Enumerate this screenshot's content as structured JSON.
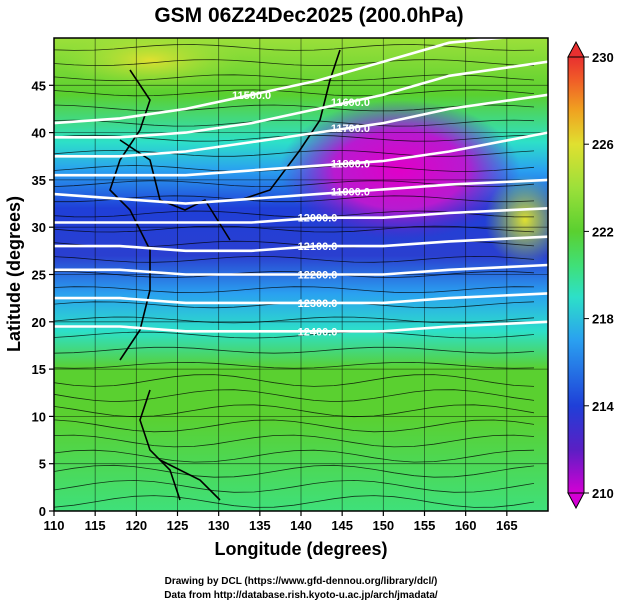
{
  "chart_data": {
    "type": "heatmap",
    "title": "GSM 06Z24Dec2025 (200.0hPa)",
    "xlabel": "Longitude (degrees)",
    "ylabel": "Latitude  (degrees)",
    "xlim": [
      110,
      170
    ],
    "ylim": [
      0,
      50
    ],
    "xticks": [
      "110",
      "115",
      "120",
      "125",
      "130",
      "135",
      "140",
      "145",
      "150",
      "155",
      "160",
      "165"
    ],
    "yticks": [
      "0",
      "5",
      "10",
      "15",
      "20",
      "25",
      "30",
      "35",
      "40",
      "45"
    ],
    "grid": true,
    "colorbar": {
      "min": 210,
      "max": 230,
      "ticks": [
        "230",
        "226",
        "222",
        "218",
        "214",
        "210"
      ],
      "colors": [
        "#d400d4",
        "#5a1fc4",
        "#1f3fd8",
        "#2aa0f0",
        "#2de0c8",
        "#3fe07a",
        "#5ad030",
        "#9ce03a",
        "#e0e030",
        "#f0a020",
        "#f05a28",
        "#e83030"
      ]
    },
    "contours": [
      {
        "label": "11500.0",
        "lat": [
          41,
          41.5,
          42.5,
          44,
          45.5,
          47.5,
          49.5,
          50.5
        ]
      },
      {
        "label": "11600.0",
        "lat": [
          39.5,
          39.5,
          40,
          41,
          42.5,
          44,
          46,
          47.5
        ]
      },
      {
        "label": "11700.0",
        "lat": [
          37.5,
          37.5,
          38,
          39,
          40,
          41,
          42.5,
          44
        ]
      },
      {
        "label": "11800.0",
        "lat": [
          35.5,
          35.5,
          35.5,
          36,
          36.5,
          37,
          38,
          40
        ]
      },
      {
        "label": "11900.0",
        "lat": [
          33.5,
          33,
          32.5,
          33,
          33.5,
          34,
          34.5,
          35
        ]
      },
      {
        "label": "12000.0",
        "lat": [
          30.5,
          30.5,
          30.5,
          30.5,
          31,
          31,
          31.5,
          32
        ]
      },
      {
        "label": "12100.0",
        "lat": [
          28,
          28,
          27.5,
          27.5,
          28,
          28,
          28.5,
          29
        ]
      },
      {
        "label": "12200.0",
        "lat": [
          25.5,
          25.5,
          25,
          25,
          25,
          25,
          25.5,
          26
        ]
      },
      {
        "label": "12300.0",
        "lat": [
          22.5,
          22.5,
          22,
          22,
          22,
          22,
          22.5,
          23
        ]
      },
      {
        "label": "12400.0",
        "lat": [
          19.5,
          19.5,
          19,
          19,
          19,
          19,
          19.5,
          20
        ]
      }
    ],
    "contour_lons": [
      110,
      118,
      126,
      134,
      142,
      150,
      158,
      170
    ]
  },
  "credits": {
    "line1": "Drawing by DCL (https://www.gfd-dennou.org/library/dcl/)",
    "line2": "Data from http://database.rish.kyoto-u.ac.jp/arch/jmadata/"
  }
}
